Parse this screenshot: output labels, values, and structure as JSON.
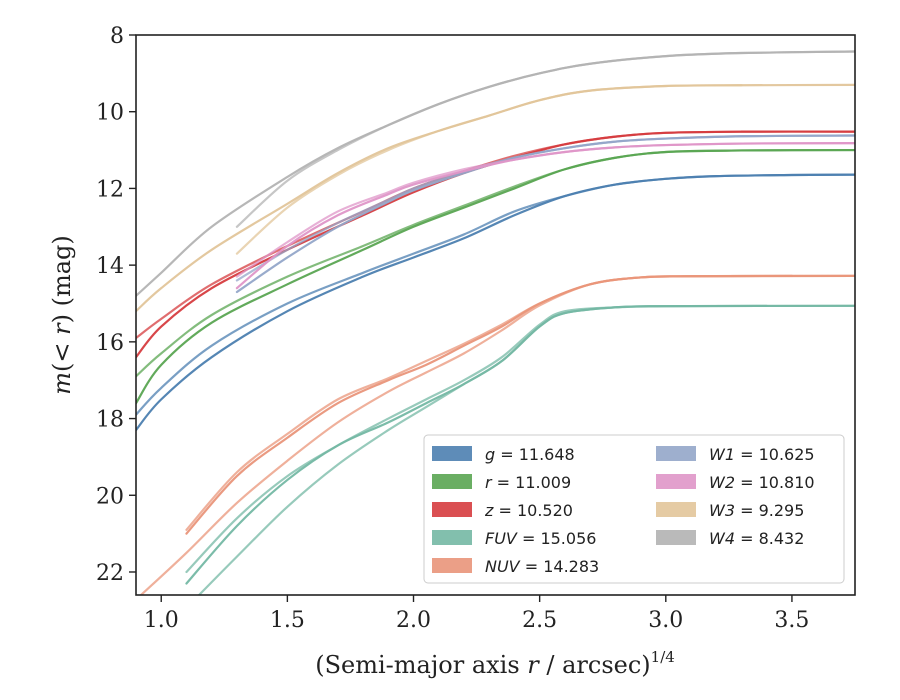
{
  "chart_data": {
    "type": "line",
    "title": "",
    "xlabel": "(Semi-major axis r / arcsec)^{1/4}",
    "xlabel_parts": {
      "prefix": "(Semi-major axis ",
      "var": "r",
      "suffix": " / arcsec)",
      "exponent": "1/4"
    },
    "ylabel": "m(< r) (mag)",
    "ylabel_parts": {
      "m": "m",
      "open": "(",
      "lt": "< ",
      "r": "r",
      "close": ") (mag)"
    },
    "xlim": [
      0.9,
      3.75
    ],
    "ylim": [
      22.6,
      8.0
    ],
    "y_inverted": true,
    "xticks": [
      1.0,
      1.5,
      2.0,
      2.5,
      3.0,
      3.5
    ],
    "xtick_labels": [
      "1.0",
      "1.5",
      "2.0",
      "2.5",
      "3.0",
      "3.5"
    ],
    "yticks": [
      8,
      10,
      12,
      14,
      16,
      18,
      20,
      22
    ],
    "ytick_labels": [
      "8",
      "10",
      "12",
      "14",
      "16",
      "18",
      "20",
      "22"
    ],
    "grid": false,
    "legend_position": "lower-right",
    "series": [
      {
        "name": "g = 11.648",
        "band": "g",
        "value": "11.648",
        "color": "#4c7fb0",
        "lines": [
          [
            [
              0.9,
              18.3
            ],
            [
              1.0,
              17.5
            ],
            [
              1.2,
              16.4
            ],
            [
              1.5,
              15.2
            ],
            [
              1.8,
              14.3
            ],
            [
              2.0,
              13.8
            ],
            [
              2.2,
              13.3
            ],
            [
              2.4,
              12.7
            ],
            [
              2.6,
              12.2
            ],
            [
              2.8,
              11.9
            ],
            [
              3.0,
              11.75
            ],
            [
              3.2,
              11.68
            ],
            [
              3.5,
              11.65
            ],
            [
              3.75,
              11.64
            ]
          ],
          [
            [
              0.9,
              17.9
            ],
            [
              1.0,
              17.2
            ],
            [
              1.2,
              16.1
            ],
            [
              1.5,
              15.0
            ],
            [
              1.8,
              14.2
            ],
            [
              2.0,
              13.7
            ],
            [
              2.2,
              13.2
            ],
            [
              2.4,
              12.6
            ],
            [
              2.6,
              12.2
            ],
            [
              2.8,
              11.9
            ],
            [
              3.0,
              11.75
            ],
            [
              3.2,
              11.68
            ],
            [
              3.5,
              11.65
            ],
            [
              3.75,
              11.64
            ]
          ]
        ]
      },
      {
        "name": "r = 11.009",
        "band": "r",
        "value": "11.009",
        "color": "#5aa552",
        "lines": [
          [
            [
              0.9,
              17.6
            ],
            [
              1.0,
              16.6
            ],
            [
              1.2,
              15.5
            ],
            [
              1.5,
              14.5
            ],
            [
              1.8,
              13.6
            ],
            [
              2.0,
              13.0
            ],
            [
              2.2,
              12.5
            ],
            [
              2.4,
              12.0
            ],
            [
              2.6,
              11.5
            ],
            [
              2.8,
              11.2
            ],
            [
              3.0,
              11.05
            ],
            [
              3.3,
              11.01
            ],
            [
              3.75,
              11.0
            ]
          ],
          [
            [
              0.9,
              16.9
            ],
            [
              1.0,
              16.3
            ],
            [
              1.2,
              15.3
            ],
            [
              1.5,
              14.3
            ],
            [
              1.8,
              13.5
            ],
            [
              2.0,
              12.95
            ],
            [
              2.2,
              12.45
            ],
            [
              2.4,
              11.95
            ],
            [
              2.6,
              11.5
            ],
            [
              2.8,
              11.2
            ],
            [
              3.0,
              11.05
            ],
            [
              3.3,
              11.01
            ],
            [
              3.75,
              11.0
            ]
          ]
        ]
      },
      {
        "name": "z = 10.520",
        "band": "z",
        "value": "10.520",
        "color": "#d63c3f",
        "lines": [
          [
            [
              0.9,
              16.4
            ],
            [
              1.0,
              15.6
            ],
            [
              1.2,
              14.6
            ],
            [
              1.5,
              13.6
            ],
            [
              1.8,
              12.7
            ],
            [
              2.0,
              12.1
            ],
            [
              2.2,
              11.6
            ],
            [
              2.4,
              11.2
            ],
            [
              2.6,
              10.85
            ],
            [
              2.8,
              10.65
            ],
            [
              3.0,
              10.55
            ],
            [
              3.3,
              10.52
            ],
            [
              3.75,
              10.52
            ]
          ],
          [
            [
              0.9,
              15.9
            ],
            [
              1.0,
              15.4
            ],
            [
              1.2,
              14.5
            ],
            [
              1.5,
              13.5
            ],
            [
              1.8,
              12.6
            ],
            [
              2.0,
              12.0
            ],
            [
              2.2,
              11.55
            ],
            [
              2.4,
              11.15
            ],
            [
              2.6,
              10.85
            ],
            [
              2.8,
              10.65
            ],
            [
              3.0,
              10.55
            ],
            [
              3.3,
              10.52
            ],
            [
              3.75,
              10.52
            ]
          ]
        ]
      },
      {
        "name": "FUV = 15.056",
        "band": "FUV",
        "value": "15.056",
        "color": "#74b8a4",
        "lines": [
          [
            [
              1.1,
              22.3
            ],
            [
              1.3,
              20.8
            ],
            [
              1.5,
              19.6
            ],
            [
              1.7,
              18.7
            ],
            [
              1.9,
              18.1
            ],
            [
              2.05,
              17.6
            ],
            [
              2.2,
              17.1
            ],
            [
              2.35,
              16.5
            ],
            [
              2.5,
              15.6
            ],
            [
              2.6,
              15.25
            ],
            [
              2.8,
              15.1
            ],
            [
              3.0,
              15.07
            ],
            [
              3.75,
              15.06
            ]
          ],
          [
            [
              1.1,
              22.0
            ],
            [
              1.3,
              20.6
            ],
            [
              1.5,
              19.5
            ],
            [
              1.7,
              18.7
            ],
            [
              1.9,
              18.0
            ],
            [
              2.05,
              17.5
            ],
            [
              2.2,
              17.0
            ],
            [
              2.35,
              16.4
            ],
            [
              2.5,
              15.55
            ],
            [
              2.6,
              15.2
            ],
            [
              2.8,
              15.1
            ],
            [
              3.0,
              15.07
            ],
            [
              3.4,
              15.06
            ]
          ],
          [
            [
              1.15,
              22.6
            ],
            [
              1.3,
              21.6
            ],
            [
              1.5,
              20.3
            ],
            [
              1.7,
              19.2
            ],
            [
              1.9,
              18.3
            ],
            [
              2.05,
              17.7
            ],
            [
              2.2,
              17.1
            ],
            [
              2.35,
              16.5
            ],
            [
              2.5,
              15.6
            ],
            [
              2.6,
              15.25
            ],
            [
              2.8,
              15.1
            ],
            [
              3.0,
              15.07
            ],
            [
              3.75,
              15.06
            ]
          ]
        ]
      },
      {
        "name": "NUV = 14.283",
        "band": "NUV",
        "value": "14.283",
        "color": "#e9957a",
        "lines": [
          [
            [
              1.1,
              21.0
            ],
            [
              1.3,
              19.5
            ],
            [
              1.5,
              18.5
            ],
            [
              1.7,
              17.6
            ],
            [
              1.9,
              17.0
            ],
            [
              2.05,
              16.6
            ],
            [
              2.2,
              16.1
            ],
            [
              2.35,
              15.6
            ],
            [
              2.5,
              15.0
            ],
            [
              2.7,
              14.5
            ],
            [
              2.9,
              14.32
            ],
            [
              3.1,
              14.29
            ],
            [
              3.75,
              14.28
            ]
          ],
          [
            [
              1.1,
              20.9
            ],
            [
              1.3,
              19.4
            ],
            [
              1.5,
              18.4
            ],
            [
              1.7,
              17.5
            ],
            [
              1.9,
              16.95
            ],
            [
              2.05,
              16.5
            ],
            [
              2.2,
              16.05
            ],
            [
              2.35,
              15.55
            ],
            [
              2.5,
              15.0
            ],
            [
              2.7,
              14.5
            ],
            [
              2.9,
              14.32
            ],
            [
              3.1,
              14.29
            ],
            [
              3.5,
              14.28
            ]
          ],
          [
            [
              0.92,
              22.6
            ],
            [
              1.1,
              21.5
            ],
            [
              1.3,
              20.2
            ],
            [
              1.5,
              19.1
            ],
            [
              1.7,
              18.1
            ],
            [
              1.9,
              17.3
            ],
            [
              2.05,
              16.8
            ],
            [
              2.2,
              16.3
            ],
            [
              2.35,
              15.7
            ],
            [
              2.5,
              15.05
            ],
            [
              2.7,
              14.5
            ],
            [
              2.9,
              14.32
            ],
            [
              3.1,
              14.29
            ],
            [
              3.75,
              14.28
            ]
          ]
        ]
      },
      {
        "name": "W1 = 10.625",
        "band": "W1",
        "value": "10.625",
        "color": "#94a6c9",
        "lines": [
          [
            [
              1.3,
              14.7
            ],
            [
              1.5,
              13.8
            ],
            [
              1.7,
              13.0
            ],
            [
              1.9,
              12.35
            ],
            [
              2.0,
              12.05
            ],
            [
              2.2,
              11.6
            ],
            [
              2.4,
              11.2
            ],
            [
              2.6,
              10.95
            ],
            [
              2.8,
              10.78
            ],
            [
              3.0,
              10.7
            ],
            [
              3.3,
              10.64
            ],
            [
              3.75,
              10.62
            ]
          ],
          [
            [
              1.3,
              14.4
            ],
            [
              1.5,
              13.6
            ],
            [
              1.7,
              12.9
            ],
            [
              1.9,
              12.3
            ],
            [
              2.0,
              12.0
            ],
            [
              2.2,
              11.55
            ],
            [
              2.4,
              11.2
            ],
            [
              2.6,
              10.95
            ],
            [
              2.8,
              10.78
            ],
            [
              3.0,
              10.7
            ],
            [
              3.3,
              10.64
            ],
            [
              3.75,
              10.62
            ]
          ]
        ]
      },
      {
        "name": "W2 = 10.810",
        "band": "W2",
        "value": "10.810",
        "color": "#df96c8",
        "lines": [
          [
            [
              1.3,
              14.6
            ],
            [
              1.5,
              13.5
            ],
            [
              1.7,
              12.7
            ],
            [
              1.9,
              12.15
            ],
            [
              2.0,
              11.9
            ],
            [
              2.2,
              11.55
            ],
            [
              2.4,
              11.25
            ],
            [
              2.6,
              11.05
            ],
            [
              2.8,
              10.93
            ],
            [
              3.0,
              10.87
            ],
            [
              3.3,
              10.83
            ],
            [
              3.75,
              10.82
            ]
          ],
          [
            [
              1.3,
              14.3
            ],
            [
              1.5,
              13.4
            ],
            [
              1.7,
              12.6
            ],
            [
              1.9,
              12.1
            ],
            [
              2.0,
              11.85
            ],
            [
              2.2,
              11.5
            ],
            [
              2.4,
              11.25
            ],
            [
              2.6,
              11.05
            ],
            [
              2.8,
              10.93
            ],
            [
              3.0,
              10.87
            ],
            [
              3.3,
              10.83
            ],
            [
              3.75,
              10.82
            ]
          ]
        ]
      },
      {
        "name": "W3 = 9.295",
        "band": "W3",
        "value": "9.295",
        "color": "#e2c59a",
        "lines": [
          [
            [
              0.9,
              15.2
            ],
            [
              1.0,
              14.6
            ],
            [
              1.2,
              13.6
            ],
            [
              1.5,
              12.4
            ],
            [
              1.7,
              11.6
            ],
            [
              1.9,
              10.95
            ],
            [
              2.1,
              10.5
            ],
            [
              2.3,
              10.1
            ],
            [
              2.5,
              9.7
            ],
            [
              2.7,
              9.45
            ],
            [
              3.0,
              9.33
            ],
            [
              3.3,
              9.31
            ],
            [
              3.75,
              9.3
            ]
          ],
          [
            [
              1.3,
              13.7
            ],
            [
              1.5,
              12.5
            ],
            [
              1.7,
              11.65
            ],
            [
              1.9,
              11.0
            ],
            [
              2.1,
              10.5
            ],
            [
              2.3,
              10.1
            ],
            [
              2.5,
              9.7
            ],
            [
              2.7,
              9.45
            ],
            [
              3.0,
              9.33
            ],
            [
              3.3,
              9.31
            ]
          ]
        ]
      },
      {
        "name": "W4 = 8.432",
        "band": "W4",
        "value": "8.432",
        "color": "#b3b3b3",
        "lines": [
          [
            [
              0.9,
              14.8
            ],
            [
              1.0,
              14.2
            ],
            [
              1.2,
              13.0
            ],
            [
              1.5,
              11.7
            ],
            [
              1.7,
              10.95
            ],
            [
              1.9,
              10.35
            ],
            [
              2.1,
              9.8
            ],
            [
              2.3,
              9.35
            ],
            [
              2.5,
              9.0
            ],
            [
              2.7,
              8.75
            ],
            [
              3.0,
              8.55
            ],
            [
              3.3,
              8.47
            ],
            [
              3.75,
              8.43
            ]
          ],
          [
            [
              1.3,
              13.0
            ],
            [
              1.5,
              11.8
            ],
            [
              1.7,
              11.0
            ],
            [
              1.9,
              10.35
            ],
            [
              2.1,
              9.8
            ],
            [
              2.3,
              9.35
            ],
            [
              2.5,
              9.0
            ],
            [
              2.7,
              8.75
            ],
            [
              3.0,
              8.55
            ],
            [
              3.3,
              8.47
            ],
            [
              3.75,
              8.43
            ]
          ]
        ]
      }
    ]
  }
}
